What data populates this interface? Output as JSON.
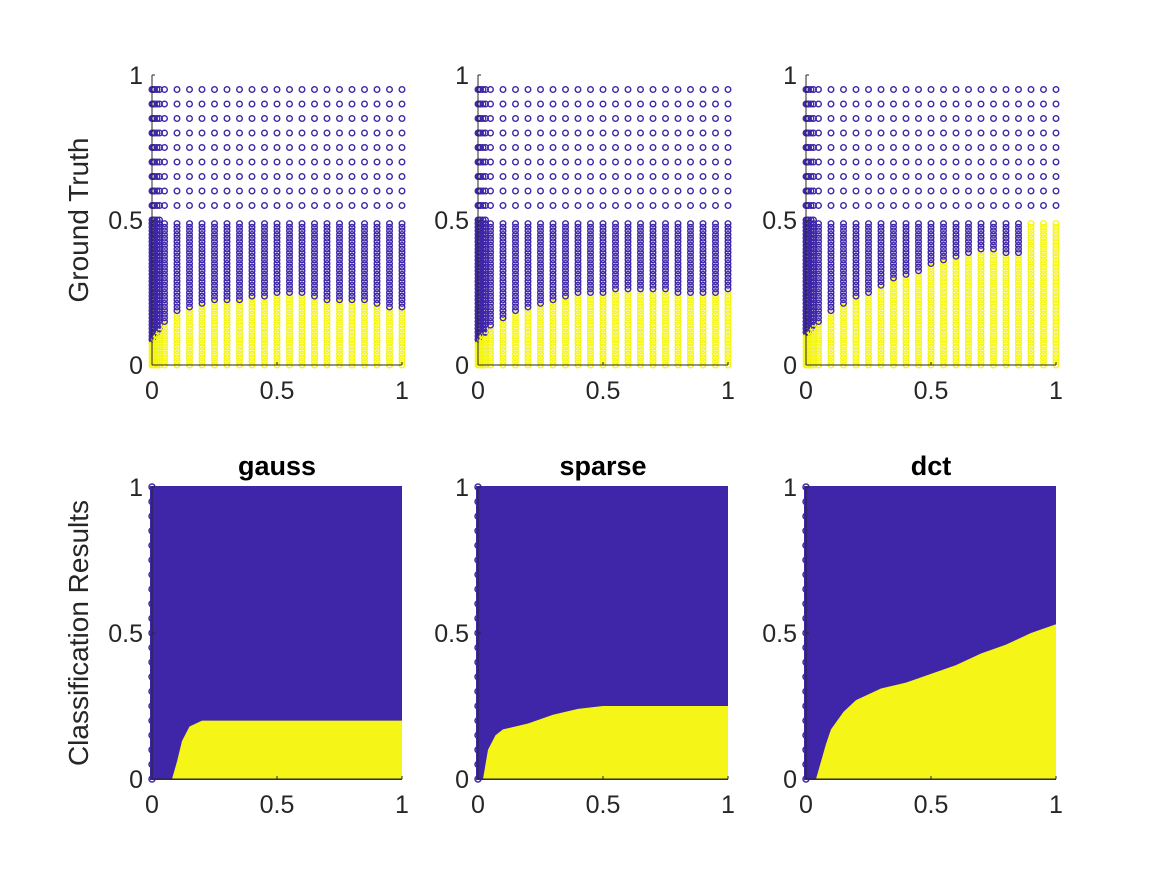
{
  "colors": {
    "class0": "#3f26a8",
    "class1": "#f5f517",
    "axis": "#262626"
  },
  "chart_data": [
    {
      "type": "scatter",
      "row": "top",
      "col": 0,
      "title": "",
      "ylabel": "Ground Truth",
      "xlim": [
        0,
        1
      ],
      "ylim": [
        0,
        1
      ],
      "xticks": [
        "0",
        "0.5",
        "1"
      ],
      "yticks": [
        "0",
        "0.5",
        "1"
      ],
      "boundary_x": [
        0,
        0.05,
        0.1,
        0.2,
        0.3,
        0.4,
        0.5,
        0.6,
        0.7,
        0.8,
        0.9,
        1.0
      ],
      "boundary_y": [
        0.08,
        0.15,
        0.18,
        0.21,
        0.22,
        0.23,
        0.24,
        0.24,
        0.22,
        0.22,
        0.21,
        0.19
      ]
    },
    {
      "type": "scatter",
      "row": "top",
      "col": 1,
      "title": "",
      "ylabel": "",
      "xlim": [
        0,
        1
      ],
      "ylim": [
        0,
        1
      ],
      "xticks": [
        "0",
        "0.5",
        "1"
      ],
      "yticks": [
        "0",
        "0.5",
        "1"
      ],
      "boundary_x": [
        0,
        0.05,
        0.1,
        0.2,
        0.3,
        0.4,
        0.5,
        0.6,
        0.7,
        0.8,
        0.9,
        1.0
      ],
      "boundary_y": [
        0.08,
        0.13,
        0.16,
        0.2,
        0.22,
        0.24,
        0.25,
        0.26,
        0.26,
        0.25,
        0.24,
        0.26
      ]
    },
    {
      "type": "scatter",
      "row": "top",
      "col": 2,
      "title": "",
      "ylabel": "",
      "xlim": [
        0,
        1
      ],
      "ylim": [
        0,
        1
      ],
      "xticks": [
        "0",
        "0.5",
        "1"
      ],
      "yticks": [
        "0",
        "0.5",
        "1"
      ],
      "boundary_x": [
        0,
        0.05,
        0.1,
        0.2,
        0.3,
        0.4,
        0.5,
        0.6,
        0.7,
        0.8,
        0.85,
        0.9,
        1.0
      ],
      "boundary_y": [
        0.1,
        0.15,
        0.18,
        0.23,
        0.27,
        0.31,
        0.34,
        0.37,
        0.4,
        0.38,
        0.38,
        0.5,
        0.5
      ]
    },
    {
      "type": "area",
      "row": "bottom",
      "col": 0,
      "title": "gauss",
      "ylabel": "Classification Results",
      "xlim": [
        0,
        1
      ],
      "ylim": [
        0,
        1
      ],
      "xticks": [
        "0",
        "0.5",
        "1"
      ],
      "yticks": [
        "0",
        "0.5",
        "1"
      ],
      "boundary_x": [
        0,
        0.08,
        0.1,
        0.12,
        0.15,
        0.2,
        0.3,
        0.5,
        0.8,
        1.0
      ],
      "boundary_y": [
        0,
        0,
        0.06,
        0.13,
        0.18,
        0.2,
        0.2,
        0.2,
        0.2,
        0.2
      ]
    },
    {
      "type": "area",
      "row": "bottom",
      "col": 1,
      "title": "sparse",
      "ylabel": "",
      "xlim": [
        0,
        1
      ],
      "ylim": [
        0,
        1
      ],
      "xticks": [
        "0",
        "0.5",
        "1"
      ],
      "yticks": [
        "0",
        "0.5",
        "1"
      ],
      "boundary_x": [
        0,
        0.02,
        0.04,
        0.07,
        0.1,
        0.2,
        0.3,
        0.4,
        0.5,
        1.0
      ],
      "boundary_y": [
        0,
        0,
        0.1,
        0.15,
        0.17,
        0.19,
        0.22,
        0.24,
        0.25,
        0.25
      ]
    },
    {
      "type": "area",
      "row": "bottom",
      "col": 2,
      "title": "dct",
      "ylabel": "",
      "xlim": [
        0,
        1
      ],
      "ylim": [
        0,
        1
      ],
      "xticks": [
        "0",
        "0.5",
        "1"
      ],
      "yticks": [
        "0",
        "0.5",
        "1"
      ],
      "boundary_x": [
        0,
        0.04,
        0.06,
        0.08,
        0.1,
        0.15,
        0.2,
        0.3,
        0.4,
        0.5,
        0.6,
        0.7,
        0.8,
        0.9,
        1.0
      ],
      "boundary_y": [
        0,
        0,
        0.06,
        0.12,
        0.17,
        0.23,
        0.27,
        0.31,
        0.33,
        0.36,
        0.39,
        0.43,
        0.46,
        0.5,
        0.53
      ]
    }
  ]
}
